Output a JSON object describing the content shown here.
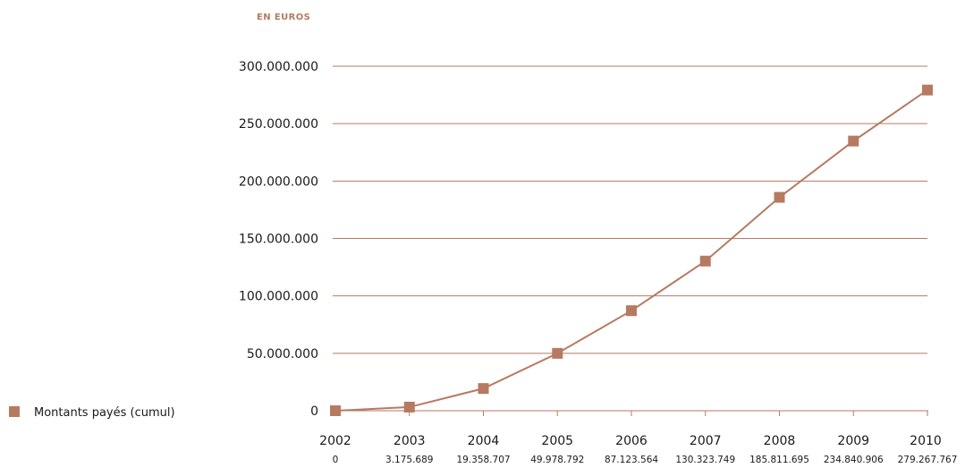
{
  "chart_data": {
    "type": "line",
    "unit_label": "EN EUROS",
    "categories": [
      "2002",
      "2003",
      "2004",
      "2005",
      "2006",
      "2007",
      "2008",
      "2009",
      "2010"
    ],
    "value_labels": [
      "0",
      "3.175.689",
      "19.358.707",
      "49.978.792",
      "87.123.564",
      "130.323.749",
      "185.811.695",
      "234.840.906",
      "279.267.767"
    ],
    "series": [
      {
        "name": "Montants payés (cumul)",
        "values": [
          0,
          3175689,
          19358707,
          49978792,
          87123564,
          130323749,
          185811695,
          234840906,
          279267767
        ]
      }
    ],
    "ylim": [
      0,
      300000000
    ],
    "y_ticks": [
      0,
      50000000,
      100000000,
      150000000,
      200000000,
      250000000,
      300000000
    ],
    "y_tick_labels": [
      "0",
      "50.000.000",
      "100.000.000",
      "150.000.000",
      "200.000.000",
      "250.000.000",
      "300.000.000"
    ],
    "grid": true,
    "legend_position": "left",
    "colors": {
      "series": "#b67a62",
      "grid": "#b67a62",
      "marker": "#b67a62",
      "label": "#b67a62"
    }
  }
}
